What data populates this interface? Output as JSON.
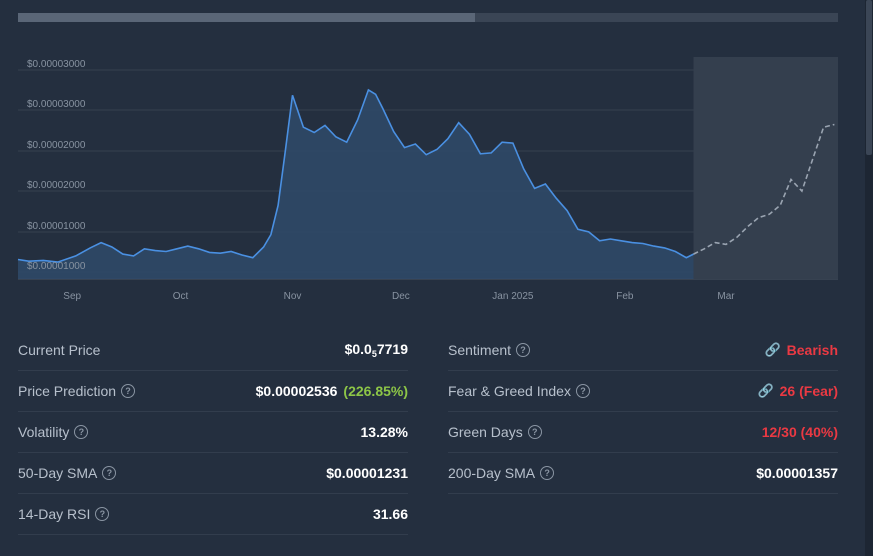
{
  "chart_data": {
    "type": "area",
    "y_tick_labels": [
      "$0.00003000",
      "$0.00003000",
      "$0.00002000",
      "$0.00002000",
      "$0.00001000",
      "$0.00001000"
    ],
    "x_tick_labels": [
      "Sep",
      "Oct",
      "Nov",
      "Dec",
      "Jan 2025",
      "Feb",
      "Mar"
    ],
    "ylim": [
      7.5e-06,
      3.25e-05
    ],
    "series": [
      {
        "x": [
          "2024-08-17",
          "2024-08-20",
          "2024-08-24",
          "2024-08-28",
          "2024-09-02",
          "2024-09-06",
          "2024-09-09",
          "2024-09-12",
          "2024-09-15",
          "2024-09-18",
          "2024-09-21",
          "2024-09-24",
          "2024-09-27",
          "2024-09-30",
          "2024-10-03",
          "2024-10-06",
          "2024-10-09",
          "2024-10-12",
          "2024-10-15",
          "2024-10-18",
          "2024-10-21",
          "2024-10-24",
          "2024-10-26",
          "2024-10-28",
          "2024-10-30",
          "2024-11-01",
          "2024-11-04",
          "2024-11-07",
          "2024-11-10",
          "2024-11-13",
          "2024-11-16",
          "2024-11-19",
          "2024-11-22",
          "2024-11-24",
          "2024-11-26",
          "2024-11-29",
          "2024-12-02",
          "2024-12-05",
          "2024-12-08",
          "2024-12-11",
          "2024-12-14",
          "2024-12-17",
          "2024-12-20",
          "2024-12-23",
          "2024-12-26",
          "2024-12-29",
          "2025-01-01",
          "2025-01-04",
          "2025-01-07",
          "2025-01-10",
          "2025-01-13",
          "2025-01-16",
          "2025-01-19",
          "2025-01-22",
          "2025-01-25",
          "2025-01-28",
          "2025-01-31",
          "2025-02-03",
          "2025-02-06",
          "2025-02-09",
          "2025-02-12",
          "2025-02-15",
          "2025-02-18",
          "2025-02-20"
        ],
        "values": [
          9.7e-06,
          9.5e-06,
          9.6e-06,
          9.4e-06,
          1.01e-05,
          1.1e-05,
          1.16e-05,
          1.11e-05,
          1.03e-05,
          1.01e-05,
          1.09e-05,
          1.07e-05,
          1.06e-05,
          1.09e-05,
          1.12e-05,
          1.09e-05,
          1.05e-05,
          1.04e-05,
          1.06e-05,
          1.02e-05,
          9.9e-06,
          1.11e-05,
          1.25e-05,
          1.58e-05,
          2.19e-05,
          2.82e-05,
          2.46e-05,
          2.4e-05,
          2.48e-05,
          2.35e-05,
          2.29e-05,
          2.54e-05,
          2.88e-05,
          2.83e-05,
          2.67e-05,
          2.41e-05,
          2.23e-05,
          2.27e-05,
          2.15e-05,
          2.21e-05,
          2.33e-05,
          2.51e-05,
          2.38e-05,
          2.16e-05,
          2.17e-05,
          2.29e-05,
          2.28e-05,
          1.99e-05,
          1.77e-05,
          1.82e-05,
          1.66e-05,
          1.52e-05,
          1.31e-05,
          1.28e-05,
          1.18e-05,
          1.2e-05,
          1.18e-05,
          1.16e-05,
          1.15e-05,
          1.12e-05,
          1.1e-05,
          1.06e-05,
          9.9e-06,
          1.03e-05
        ]
      },
      {
        "x": [
          "2025-02-20",
          "2025-02-23",
          "2025-02-26",
          "2025-03-01",
          "2025-03-04",
          "2025-03-07",
          "2025-03-10",
          "2025-03-13",
          "2025-03-16",
          "2025-03-19",
          "2025-03-22",
          "2025-03-25",
          "2025-03-28",
          "2025-03-31"
        ],
        "values": [
          1.03e-05,
          1.09e-05,
          1.16e-05,
          1.14e-05,
          1.22e-05,
          1.34e-05,
          1.44e-05,
          1.48e-05,
          1.58e-05,
          1.87e-05,
          1.74e-05,
          2.1e-05,
          2.46e-05,
          2.49e-05
        ]
      }
    ],
    "colors": {
      "line": "#4a90e2",
      "fill": "#2f4a6a",
      "prediction": "#9aa4b1",
      "prediction_bg": "#343f4e"
    }
  },
  "stats": {
    "left": [
      {
        "label": "Current Price",
        "value_main": "$0.0",
        "value_sub": "5",
        "value_tail": "7719"
      },
      {
        "label": "Price Prediction",
        "value": "$0.00002536",
        "change": "(226.85%)"
      },
      {
        "label": "Volatility",
        "value": "13.28%"
      },
      {
        "label": "50-Day SMA",
        "value": "$0.00001231"
      },
      {
        "label": "14-Day RSI",
        "value": "31.66"
      }
    ],
    "right": [
      {
        "label": "Sentiment",
        "value": "Bearish"
      },
      {
        "label": "Fear & Greed Index",
        "value": "26 (Fear)"
      },
      {
        "label": "Green Days",
        "value": "12/30 (40%)"
      },
      {
        "label": "200-Day SMA",
        "value": "$0.00001357"
      }
    ],
    "help_glyph": "?",
    "link_glyph": "🔗"
  }
}
